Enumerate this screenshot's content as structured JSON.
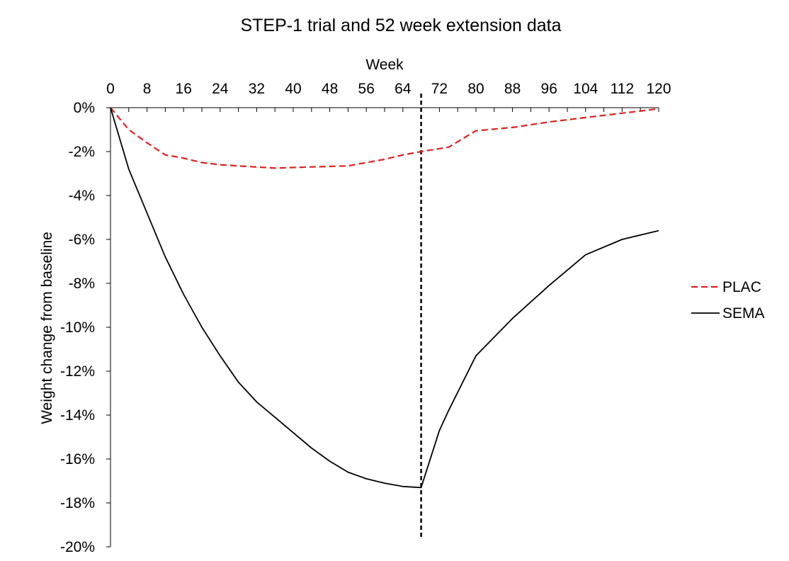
{
  "chart_data": {
    "type": "line",
    "title": "STEP-1 trial and 52 week extension data",
    "xlabel": "Week",
    "ylabel": "Weight change from baseline",
    "xlim": [
      0,
      120
    ],
    "ylim": [
      -20,
      0
    ],
    "x_axis_position": "top",
    "x_ticks": [
      "0",
      "8",
      "16",
      "24",
      "32",
      "40",
      "48",
      "56",
      "64",
      "72",
      "80",
      "88",
      "96",
      "104",
      "112",
      "120"
    ],
    "y_ticks": [
      "0%",
      "-2%",
      "-4%",
      "-6%",
      "-8%",
      "-10%",
      "-12%",
      "-14%",
      "-16%",
      "-18%",
      "-20%"
    ],
    "grid": false,
    "legend_position": "right",
    "annotations": [
      {
        "type": "vertical-dashed-line",
        "x": 68
      }
    ],
    "series": [
      {
        "name": "PLAC",
        "color": "#e02020",
        "style": "dashed",
        "x": [
          0,
          4,
          8,
          12,
          16,
          20,
          24,
          28,
          36,
          44,
          52,
          56,
          60,
          64,
          68,
          74,
          80,
          88,
          96,
          104,
          112,
          120
        ],
        "y": [
          0,
          -1.0,
          -1.6,
          -2.15,
          -2.3,
          -2.5,
          -2.6,
          -2.65,
          -2.75,
          -2.7,
          -2.65,
          -2.5,
          -2.35,
          -2.15,
          -2.0,
          -1.8,
          -1.05,
          -0.9,
          -0.65,
          -0.45,
          -0.25,
          -0.05
        ]
      },
      {
        "name": "SEMA",
        "color": "#000000",
        "style": "solid",
        "x": [
          0,
          4,
          8,
          12,
          16,
          20,
          24,
          28,
          32,
          36,
          40,
          44,
          48,
          52,
          56,
          60,
          64,
          68,
          72,
          74,
          80,
          88,
          96,
          104,
          112,
          120
        ],
        "y": [
          0,
          -2.8,
          -4.8,
          -6.8,
          -8.5,
          -10.0,
          -11.3,
          -12.5,
          -13.4,
          -14.1,
          -14.8,
          -15.5,
          -16.1,
          -16.6,
          -16.9,
          -17.1,
          -17.25,
          -17.3,
          -14.7,
          -13.8,
          -11.3,
          -9.6,
          -8.1,
          -6.7,
          -6.0,
          -5.6
        ]
      }
    ]
  }
}
